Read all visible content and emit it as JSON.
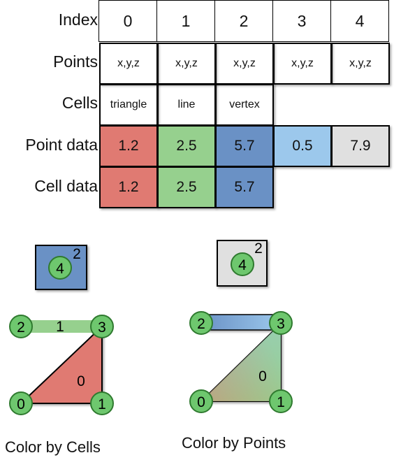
{
  "table": {
    "row_labels": {
      "index": "Index",
      "points": "Points",
      "cells": "Cells",
      "point_data": "Point data",
      "cell_data": "Cell data"
    },
    "index": [
      "0",
      "1",
      "2",
      "3",
      "4"
    ],
    "points": [
      "x,y,z",
      "x,y,z",
      "x,y,z",
      "x,y,z",
      "x,y,z"
    ],
    "cells": [
      "triangle",
      "line",
      "vertex"
    ],
    "point_data": [
      "1.2",
      "2.5",
      "5.7",
      "0.5",
      "7.9"
    ],
    "cell_data": [
      "1.2",
      "2.5",
      "5.7"
    ]
  },
  "colors": {
    "red": "#e07a72",
    "green": "#96d08e",
    "blue": "#6a91c5",
    "light_blue": "#9cc8ec",
    "gray": "#e0e0e0",
    "node_fill": "#6ec76e",
    "node_stroke": "#2f7a2f"
  },
  "left_diagram": {
    "vertex_point": "4",
    "vertex_cell": "2",
    "line_cell": "1",
    "triangle_cell": "0",
    "points": [
      "0",
      "1",
      "2",
      "3"
    ],
    "caption": "Color by Cells"
  },
  "right_diagram": {
    "vertex_point": "4",
    "vertex_cell": "2",
    "triangle_cell": "0",
    "points": [
      "0",
      "1",
      "2",
      "3"
    ],
    "caption": "Color by Points"
  }
}
